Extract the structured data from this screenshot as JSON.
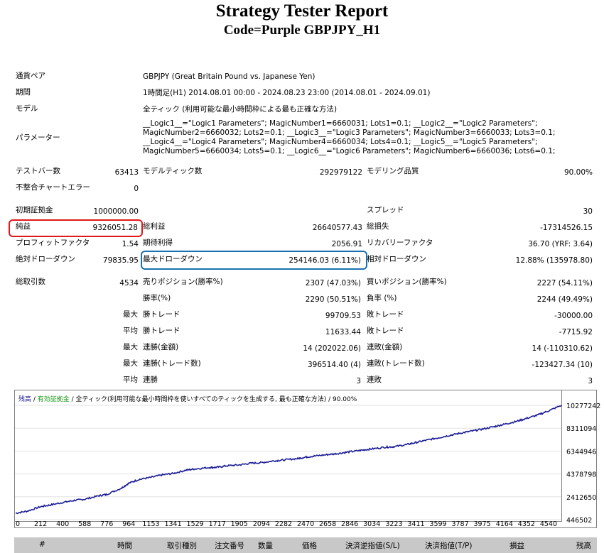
{
  "report": {
    "title": "Strategy Tester Report",
    "subtitle": "Code=Purple GBPJPY_H1"
  },
  "info": {
    "pair_label": "通貨ペア",
    "pair_value": "GBPJPY (Great Britain Pound vs. Japanese Yen)",
    "period_label": "期間",
    "period_value": "1時間足(H1) 2014.08.01 00:00 - 2024.08.23 23:00 (2014.08.01 - 2024.09.01)",
    "model_label": "モデル",
    "model_value": "全ティック (利用可能な最小時間枠による最も正確な方法)",
    "params_label": "パラメーター",
    "params_value": "__Logic1__=\"Logic1 Parameters\"; MagicNumber1=6660031; Lots1=0.1; __Logic2__=\"Logic2 Parameters\"; MagicNumber2=6660032; Lots2=0.1; __Logic3__=\"Logic3 Parameters\"; MagicNumber3=6660033; Lots3=0.1; __Logic4__=\"Logic4 Parameters\"; MagicNumber4=6660034; Lots4=0.1; __Logic5__=\"Logic5 Parameters\"; MagicNumber5=6660034; Lots5=0.1; __Logic6__=\"Logic6 Parameters\"; MagicNumber6=6660036; Lots6=0.1;"
  },
  "stats": {
    "test_bars_label": "テストバー数",
    "test_bars": "63413",
    "model_ticks_label": "モデルティック数",
    "model_ticks": "292979122",
    "model_quality_label": "モデリング品質",
    "model_quality": "90.00%",
    "mismatch_label": "不整合チャートエラー",
    "mismatch": "0",
    "initial_deposit_label": "初期証拠金",
    "initial_deposit": "1000000.00",
    "spread_label": "スプレッド",
    "spread": "30",
    "net_profit_label": "純益",
    "net_profit": "9326051.28",
    "gross_profit_label": "総利益",
    "gross_profit": "26640577.43",
    "gross_loss_label": "総損失",
    "gross_loss": "-17314526.15",
    "profit_factor_label": "プロフィットファクタ",
    "profit_factor": "1.54",
    "expected_payoff_label": "期待利得",
    "expected_payoff": "2056.91",
    "recovery_factor_label": "リカバリーファクタ",
    "recovery_factor": "36.70 (YRF: 3.64)",
    "abs_dd_label": "絶対ドローダウン",
    "abs_dd": "79835.95",
    "max_dd_label": "最大ドローダウン",
    "max_dd": "254146.03 (6.11%)",
    "rel_dd_label": "相対ドローダウン",
    "rel_dd": "12.88% (135978.80)",
    "total_trades_label": "総取引数",
    "total_trades": "4534",
    "short_label": "売りポジション(勝率%)",
    "short": "2307 (47.03%)",
    "long_label": "買いポジション(勝率%)",
    "long": "2227 (54.11%)",
    "win_pct_label": "勝率(%)",
    "win_pct": "2290 (50.51%)",
    "loss_pct_label": "負率 (%)",
    "loss_pct": "2244 (49.49%)",
    "max_label": "最大",
    "avg_label": "平均",
    "win_trade_label": "勝トレード",
    "lose_trade_label": "敗トレード",
    "largest_win": "99709.53",
    "largest_loss": "-30000.00",
    "avg_win": "11633.44",
    "avg_loss": "-7715.92",
    "cons_wins_amt_label": "連勝(金額)",
    "cons_wins_amt": "14 (202022.06)",
    "cons_losses_amt_label": "連敗(金額)",
    "cons_losses_amt": "14 (-110310.62)",
    "cons_wins_trd_label": "連勝(トレード数)",
    "cons_wins_trd": "396514.40 (4)",
    "cons_losses_trd_label": "連敗(トレード数)",
    "cons_losses_trd": "-123427.34 (10)",
    "avg_cons_wins_label": "連勝",
    "avg_cons_wins": "3",
    "avg_cons_losses_label": "連敗",
    "avg_cons_losses": "3"
  },
  "chart_data": {
    "type": "line",
    "legend_balance": "残高",
    "legend_sep1": " / ",
    "legend_margin": "有効証拠金",
    "legend_model": " / 全ティック(利用可能な最小時間枠を使いすべてのティックを生成する, 最も正確な方法)",
    "legend_quality": " / 90.00%",
    "x_ticks": [
      "0",
      "212",
      "400",
      "588",
      "776",
      "964",
      "1153",
      "1341",
      "1529",
      "1717",
      "1905",
      "2094",
      "2282",
      "2470",
      "2658",
      "2846",
      "3034",
      "3223",
      "3411",
      "3599",
      "3787",
      "3975",
      "4164",
      "4352",
      "4540"
    ],
    "y_ticks": [
      "10277242",
      "8311094",
      "6344946",
      "4378798",
      "2412650",
      "446502"
    ],
    "ylim": [
      446502,
      10277242
    ],
    "xlim": [
      0,
      4650
    ],
    "x": [
      0,
      100,
      212,
      300,
      400,
      500,
      588,
      700,
      776,
      900,
      964,
      1050,
      1153,
      1250,
      1341,
      1450,
      1529,
      1650,
      1717,
      1800,
      1905,
      2000,
      2094,
      2200,
      2282,
      2400,
      2470,
      2550,
      2658,
      2750,
      2846,
      2950,
      3034,
      3150,
      3223,
      3330,
      3411,
      3500,
      3599,
      3700,
      3787,
      3880,
      3975,
      4080,
      4164,
      4260,
      4352,
      4450,
      4540,
      4650
    ],
    "y": [
      1000000,
      1180000,
      1560000,
      1720000,
      1920000,
      2100000,
      2200000,
      2480000,
      2620000,
      3150000,
      3580000,
      3900000,
      4080000,
      4300000,
      4420000,
      4700000,
      4810000,
      4930000,
      4950000,
      5080000,
      5150000,
      5300000,
      5350000,
      5500000,
      5580000,
      5700000,
      5820000,
      5920000,
      6040000,
      6140000,
      6280000,
      6420000,
      6530000,
      6680000,
      6720000,
      6900000,
      7080000,
      7280000,
      7480000,
      7700000,
      7880000,
      8050000,
      8230000,
      8450000,
      8650000,
      8880000,
      9150000,
      9450000,
      9800000,
      10277242
    ],
    "line_color": "#1c1c96"
  },
  "table_header": [
    "#",
    "時間",
    "取引種別",
    "注文番号",
    "数量",
    "価格",
    "決済逆指値(S/L)",
    "決済指値(T/P)",
    "損益",
    "残高"
  ]
}
